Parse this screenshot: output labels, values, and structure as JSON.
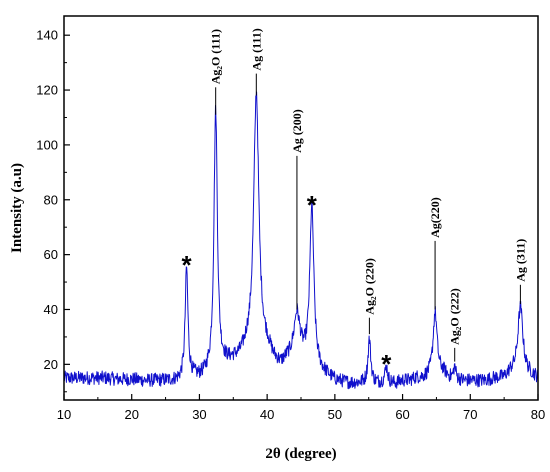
{
  "chart_data": {
    "type": "line",
    "title": "",
    "xlabel": "2θ (degree)",
    "ylabel": "Intensity (a.u)",
    "xlim": [
      10,
      80
    ],
    "ylim": [
      7,
      147
    ],
    "xticks": [
      10,
      20,
      30,
      40,
      50,
      60,
      70,
      80
    ],
    "yticks": [
      20,
      40,
      60,
      80,
      100,
      120,
      140
    ],
    "grid": false,
    "line_color": "#1010cc",
    "baseline": [
      [
        10,
        15
      ],
      [
        12,
        15
      ],
      [
        14,
        15
      ],
      [
        16,
        15
      ],
      [
        18,
        14.5
      ],
      [
        20,
        14.5
      ],
      [
        22,
        14
      ],
      [
        24,
        14
      ],
      [
        26,
        14
      ],
      [
        27,
        14
      ],
      [
        29,
        15
      ],
      [
        30,
        15
      ],
      [
        31,
        16
      ],
      [
        33,
        19
      ],
      [
        34,
        20
      ],
      [
        35,
        21
      ],
      [
        36,
        22
      ],
      [
        37,
        25
      ],
      [
        40,
        25
      ],
      [
        41,
        21
      ],
      [
        42,
        19
      ],
      [
        43,
        21
      ],
      [
        46,
        21
      ],
      [
        48,
        17
      ],
      [
        50,
        14
      ],
      [
        52,
        13
      ],
      [
        54,
        13
      ],
      [
        56,
        13
      ],
      [
        57,
        13
      ],
      [
        59,
        13
      ],
      [
        60,
        14
      ],
      [
        61,
        14
      ],
      [
        62,
        15
      ],
      [
        63,
        15
      ],
      [
        66,
        17
      ],
      [
        67,
        15
      ],
      [
        69,
        14
      ],
      [
        70,
        14
      ],
      [
        72,
        14
      ],
      [
        74,
        15
      ],
      [
        75,
        15
      ],
      [
        76,
        17
      ],
      [
        79,
        16
      ],
      [
        80,
        15
      ]
    ],
    "peaks": [
      {
        "x": 28.1,
        "y": 55,
        "w": 0.25
      },
      {
        "x": 32.4,
        "y": 112,
        "w": 0.3
      },
      {
        "x": 38.4,
        "y": 119,
        "w": 0.45
      },
      {
        "x": 39.7,
        "y": 12,
        "w": 0.6
      },
      {
        "x": 44.4,
        "y": 38,
        "w": 0.55
      },
      {
        "x": 46.6,
        "y": 77,
        "w": 0.35
      },
      {
        "x": 55.1,
        "y": 29,
        "w": 0.25
      },
      {
        "x": 57.6,
        "y": 19,
        "w": 0.25
      },
      {
        "x": 64.8,
        "y": 39,
        "w": 0.35
      },
      {
        "x": 67.7,
        "y": 19,
        "w": 0.2
      },
      {
        "x": 77.4,
        "y": 41,
        "w": 0.45
      }
    ],
    "annotations": [
      {
        "text": "Ag₂O (111)",
        "x": 32.4,
        "y_line": [
          111,
          121
        ]
      },
      {
        "text": "Ag (111)",
        "x": 38.4,
        "y_line": [
          118,
          126
        ]
      },
      {
        "text": "Ag (200)",
        "x": 44.4,
        "y_line": [
          40,
          96
        ]
      },
      {
        "text": "Ag₂O (220)",
        "x": 55.1,
        "y_line": [
          31,
          37
        ]
      },
      {
        "text": "Ag(220)",
        "x": 64.8,
        "y_line": [
          40,
          65
        ]
      },
      {
        "text": "Ag₂O (222)",
        "x": 67.7,
        "y_line": [
          21,
          26
        ]
      },
      {
        "text": "Ag (311)",
        "x": 77.4,
        "y_line": [
          42,
          49
        ]
      }
    ],
    "stars": [
      {
        "text": "*",
        "x": 28.1,
        "y": 58
      },
      {
        "text": "*",
        "x": 46.6,
        "y": 80
      },
      {
        "text": "*",
        "x": 57.6,
        "y": 22
      }
    ]
  }
}
